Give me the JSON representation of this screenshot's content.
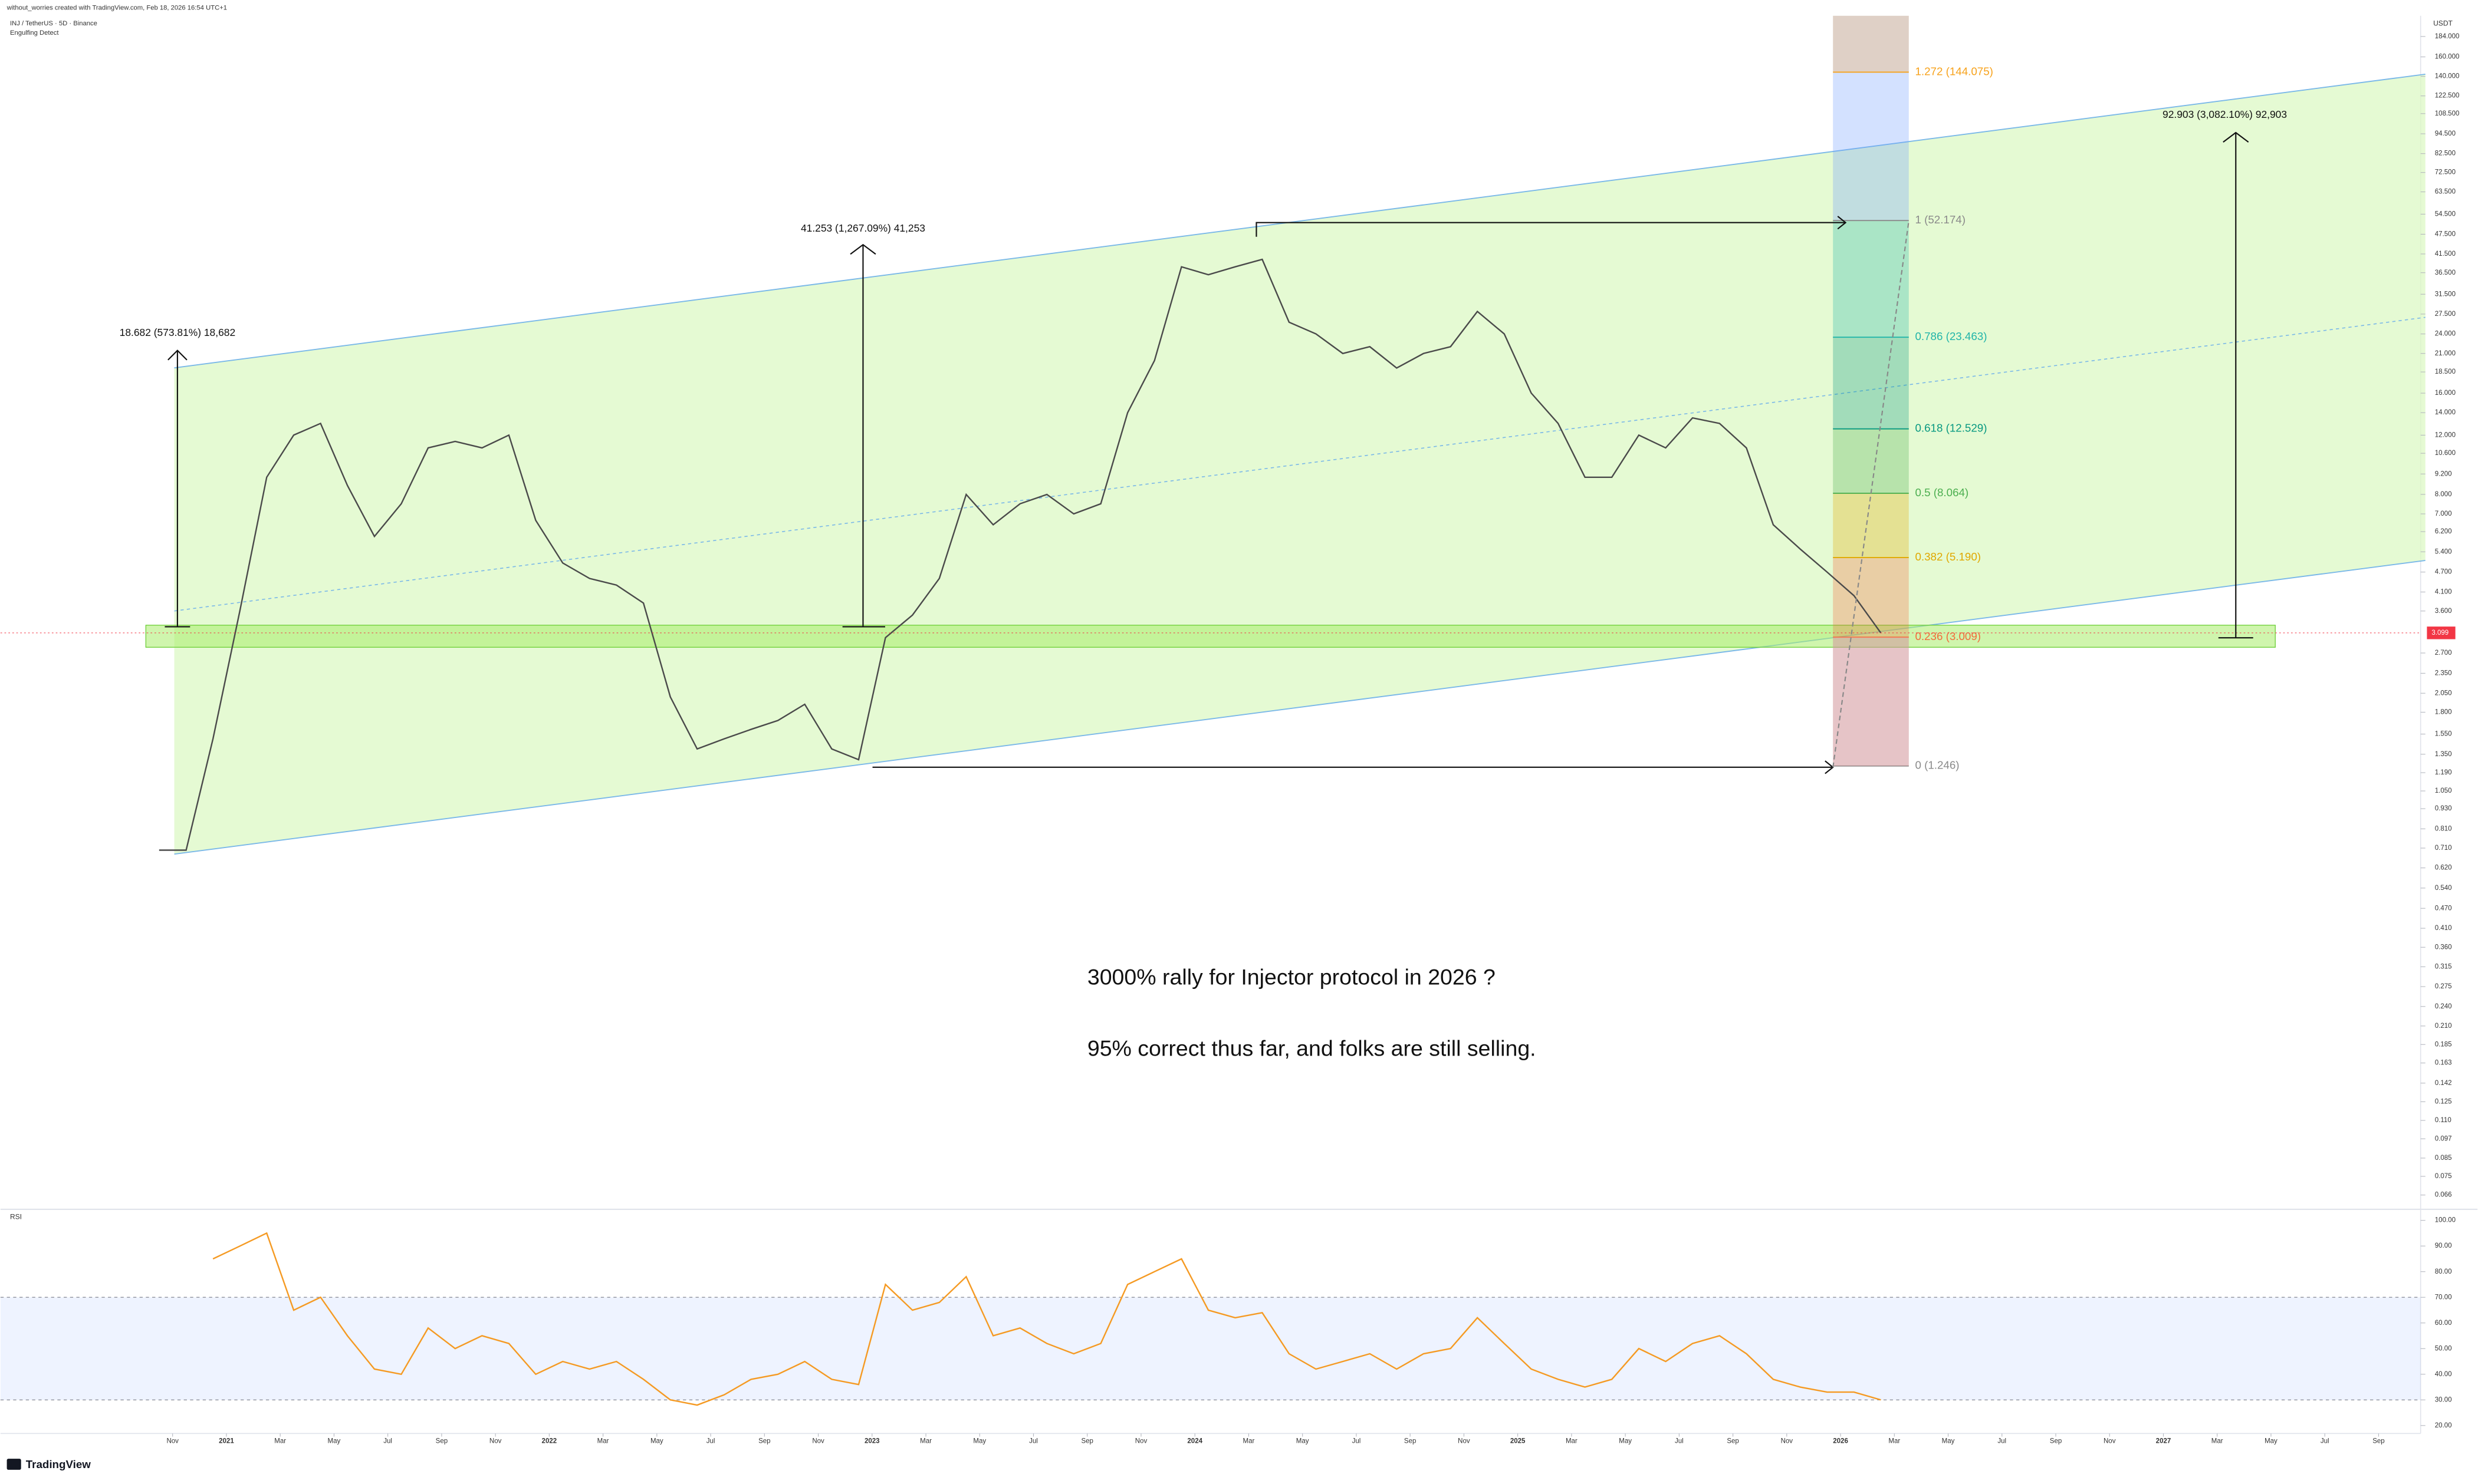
{
  "header": {
    "credit": "without_worries created with TradingView.com, Feb 18, 2026 16:54 UTC+1",
    "symbol": "INJ / TetherUS · 5D · Binance",
    "indicator": "Engulfing Detect",
    "logo": "TradingView"
  },
  "chart_data": [
    {
      "type": "line",
      "log_scale": true,
      "axis_unit": "USDT",
      "color": "#4a4a4a",
      "grid": false,
      "x": [
        "2020-10",
        "2020-11",
        "2020-12",
        "2021-01",
        "2021-02",
        "2021-03",
        "2021-04",
        "2021-05",
        "2021-06",
        "2021-07",
        "2021-08",
        "2021-09",
        "2021-10",
        "2021-11",
        "2021-12",
        "2022-01",
        "2022-02",
        "2022-03",
        "2022-04",
        "2022-05",
        "2022-06",
        "2022-07",
        "2022-08",
        "2022-09",
        "2022-10",
        "2022-11",
        "2022-12",
        "2023-01",
        "2023-02",
        "2023-03",
        "2023-04",
        "2023-05",
        "2023-06",
        "2023-07",
        "2023-08",
        "2023-09",
        "2023-10",
        "2023-11",
        "2023-12",
        "2024-01",
        "2024-02",
        "2024-03",
        "2024-04",
        "2024-05",
        "2024-06",
        "2024-07",
        "2024-08",
        "2024-09",
        "2024-10",
        "2024-11",
        "2024-12",
        "2025-01",
        "2025-02",
        "2025-03",
        "2025-04",
        "2025-05",
        "2025-06",
        "2025-07",
        "2025-08",
        "2025-09",
        "2025-10",
        "2025-11",
        "2025-12",
        "2026-01",
        "2026-02"
      ],
      "values": [
        0.7,
        0.7,
        1.5,
        3.6,
        9.0,
        12.0,
        13.0,
        8.5,
        6.0,
        7.5,
        11.0,
        11.5,
        11.0,
        12.0,
        6.7,
        5.0,
        4.5,
        4.3,
        3.8,
        2.0,
        1.4,
        1.5,
        1.6,
        1.7,
        1.9,
        1.4,
        1.3,
        3.0,
        3.5,
        4.5,
        8.0,
        6.5,
        7.5,
        8.0,
        7.0,
        7.5,
        14.0,
        20.0,
        38.0,
        36.0,
        38.0,
        40.0,
        26.0,
        24.0,
        21.0,
        22.0,
        19.0,
        21.0,
        22.0,
        28.0,
        24.0,
        16.0,
        13.0,
        9.0,
        9.0,
        12.0,
        11.0,
        13.5,
        13.0,
        11.0,
        6.5,
        5.5,
        4.7,
        4.0,
        3.1
      ],
      "ylim": [
        0.0605,
        212
      ],
      "yticks": [
        {
          "value": 184,
          "label": "184.000"
        },
        {
          "value": 160,
          "label": "160.000"
        },
        {
          "value": 140,
          "label": "140.000"
        },
        {
          "value": 122.5,
          "label": "122.500"
        },
        {
          "value": 108.5,
          "label": "108.500"
        },
        {
          "value": 94.5,
          "label": "94.500"
        },
        {
          "value": 82.5,
          "label": "82.500"
        },
        {
          "value": 72.5,
          "label": "72.500"
        },
        {
          "value": 63.5,
          "label": "63.500"
        },
        {
          "value": 54.5,
          "label": "54.500"
        },
        {
          "value": 47.5,
          "label": "47.500"
        },
        {
          "value": 41.5,
          "label": "41.500"
        },
        {
          "value": 36.5,
          "label": "36.500"
        },
        {
          "value": 31.5,
          "label": "31.500"
        },
        {
          "value": 27.5,
          "label": "27.500"
        },
        {
          "value": 24,
          "label": "24.000"
        },
        {
          "value": 21,
          "label": "21.000"
        },
        {
          "value": 18.5,
          "label": "18.500"
        },
        {
          "value": 16,
          "label": "16.000"
        },
        {
          "value": 14,
          "label": "14.000"
        },
        {
          "value": 12,
          "label": "12.000"
        },
        {
          "value": 10.6,
          "label": "10.600"
        },
        {
          "value": 9.2,
          "label": "9.200"
        },
        {
          "value": 8,
          "label": "8.000"
        },
        {
          "value": 7,
          "label": "7.000"
        },
        {
          "value": 6.2,
          "label": "6.200"
        },
        {
          "value": 5.4,
          "label": "5.400"
        },
        {
          "value": 4.7,
          "label": "4.700"
        },
        {
          "value": 4.1,
          "label": "4.100"
        },
        {
          "value": 3.6,
          "label": "3.600"
        },
        {
          "value": 2.7,
          "label": "2.700"
        },
        {
          "value": 2.35,
          "label": "2.350"
        },
        {
          "value": 2.05,
          "label": "2.050"
        },
        {
          "value": 1.8,
          "label": "1.800"
        },
        {
          "value": 1.55,
          "label": "1.550"
        },
        {
          "value": 1.35,
          "label": "1.350"
        },
        {
          "value": 1.19,
          "label": "1.190"
        },
        {
          "value": 1.05,
          "label": "1.050"
        },
        {
          "value": 0.93,
          "label": "0.930"
        },
        {
          "value": 0.81,
          "label": "0.810"
        },
        {
          "value": 0.71,
          "label": "0.710"
        },
        {
          "value": 0.62,
          "label": "0.620"
        },
        {
          "value": 0.54,
          "label": "0.540"
        },
        {
          "value": 0.47,
          "label": "0.470"
        },
        {
          "value": 0.41,
          "label": "0.410"
        },
        {
          "value": 0.36,
          "label": "0.360"
        },
        {
          "value": 0.315,
          "label": "0.315"
        },
        {
          "value": 0.275,
          "label": "0.275"
        },
        {
          "value": 0.24,
          "label": "0.240"
        },
        {
          "value": 0.21,
          "label": "0.210"
        },
        {
          "value": 0.185,
          "label": "0.185"
        },
        {
          "value": 0.163,
          "label": "0.163"
        },
        {
          "value": 0.142,
          "label": "0.142"
        },
        {
          "value": 0.125,
          "label": "0.125"
        },
        {
          "value": 0.11,
          "label": "0.110"
        },
        {
          "value": 0.097,
          "label": "0.097"
        },
        {
          "value": 0.085,
          "label": "0.085"
        },
        {
          "value": 0.075,
          "label": "0.075"
        },
        {
          "value": 0.066,
          "label": "0.066"
        }
      ],
      "xticks": [
        {
          "value": "2020-11",
          "label": "Nov"
        },
        {
          "value": "2021-01",
          "label": "2021"
        },
        {
          "value": "2021-03",
          "label": "Mar"
        },
        {
          "value": "2021-05",
          "label": "May"
        },
        {
          "value": "2021-07",
          "label": "Jul"
        },
        {
          "value": "2021-09",
          "label": "Sep"
        },
        {
          "value": "2021-11",
          "label": "Nov"
        },
        {
          "value": "2022-01",
          "label": "2022"
        },
        {
          "value": "2022-03",
          "label": "Mar"
        },
        {
          "value": "2022-05",
          "label": "May"
        },
        {
          "value": "2022-07",
          "label": "Jul"
        },
        {
          "value": "2022-09",
          "label": "Sep"
        },
        {
          "value": "2022-11",
          "label": "Nov"
        },
        {
          "value": "2023-01",
          "label": "2023"
        },
        {
          "value": "2023-03",
          "label": "Mar"
        },
        {
          "value": "2023-05",
          "label": "May"
        },
        {
          "value": "2023-07",
          "label": "Jul"
        },
        {
          "value": "2023-09",
          "label": "Sep"
        },
        {
          "value": "2023-11",
          "label": "Nov"
        },
        {
          "value": "2024-01",
          "label": "2024"
        },
        {
          "value": "2024-03",
          "label": "Mar"
        },
        {
          "value": "2024-05",
          "label": "May"
        },
        {
          "value": "2024-07",
          "label": "Jul"
        },
        {
          "value": "2024-09",
          "label": "Sep"
        },
        {
          "value": "2024-11",
          "label": "Nov"
        },
        {
          "value": "2025-01",
          "label": "2025"
        },
        {
          "value": "2025-03",
          "label": "Mar"
        },
        {
          "value": "2025-05",
          "label": "May"
        },
        {
          "value": "2025-07",
          "label": "Jul"
        },
        {
          "value": "2025-09",
          "label": "Sep"
        },
        {
          "value": "2025-11",
          "label": "Nov"
        },
        {
          "value": "2026-01",
          "label": "2026"
        },
        {
          "value": "2026-03",
          "label": "Mar"
        },
        {
          "value": "2026-05",
          "label": "May"
        },
        {
          "value": "2026-07",
          "label": "Jul"
        },
        {
          "value": "2026-09",
          "label": "Sep"
        },
        {
          "value": "2026-11",
          "label": "Nov"
        },
        {
          "value": "2027-01",
          "label": "2027"
        },
        {
          "value": "2027-03",
          "label": "Mar"
        },
        {
          "value": "2027-05",
          "label": "May"
        },
        {
          "value": "2027-07",
          "label": "Jul"
        },
        {
          "value": "2027-09",
          "label": "Sep"
        }
      ],
      "current_price": {
        "value": 3.099,
        "label": "3.099"
      },
      "fib_levels": [
        {
          "label": "1.272 (144.075)",
          "price": 144.075,
          "color": "#f7a21b"
        },
        {
          "label": "1 (52.174)",
          "price": 52.174,
          "color": "#8a8a8a"
        },
        {
          "label": "0.786 (23.463)",
          "price": 23.463,
          "color": "#22b5a9"
        },
        {
          "label": "0.618 (12.529)",
          "price": 12.529,
          "color": "#089981"
        },
        {
          "label": "0.5 (8.064)",
          "price": 8.064,
          "color": "#4caf50"
        },
        {
          "label": "0.382 (5.190)",
          "price": 5.19,
          "color": "#e0a800"
        },
        {
          "label": "0.236 (3.009)",
          "price": 3.009,
          "color": "#f26b3a"
        },
        {
          "label": "0 (1.246)",
          "price": 1.246,
          "color": "#8a8a8a"
        }
      ],
      "measurements": [
        "18.682 (573.81%) 18,682",
        "41.253 (1,267.09%) 41,253",
        "92.903 (3,082.10%) 92,903"
      ],
      "annotations": [
        "3000% rally for Injector protocol in 2026 ?",
        "95% correct thus far, and folks are still selling."
      ]
    },
    {
      "type": "line",
      "title": "RSI",
      "color": "#f59a23",
      "x": [
        "2020-12",
        "2021-01",
        "2021-02",
        "2021-03",
        "2021-04",
        "2021-05",
        "2021-06",
        "2021-07",
        "2021-08",
        "2021-09",
        "2021-10",
        "2021-11",
        "2021-12",
        "2022-01",
        "2022-02",
        "2022-03",
        "2022-04",
        "2022-05",
        "2022-06",
        "2022-07",
        "2022-08",
        "2022-09",
        "2022-10",
        "2022-11",
        "2022-12",
        "2023-01",
        "2023-02",
        "2023-03",
        "2023-04",
        "2023-05",
        "2023-06",
        "2023-07",
        "2023-08",
        "2023-09",
        "2023-10",
        "2023-11",
        "2023-12",
        "2024-01",
        "2024-02",
        "2024-03",
        "2024-04",
        "2024-05",
        "2024-06",
        "2024-07",
        "2024-08",
        "2024-09",
        "2024-10",
        "2024-11",
        "2024-12",
        "2025-01",
        "2025-02",
        "2025-03",
        "2025-04",
        "2025-05",
        "2025-06",
        "2025-07",
        "2025-08",
        "2025-09",
        "2025-10",
        "2025-11",
        "2025-12",
        "2026-01",
        "2026-02"
      ],
      "values": [
        85,
        90,
        95,
        65,
        70,
        55,
        42,
        40,
        58,
        50,
        55,
        52,
        40,
        45,
        42,
        45,
        38,
        30,
        28,
        32,
        38,
        40,
        45,
        38,
        36,
        75,
        65,
        68,
        78,
        55,
        58,
        52,
        48,
        52,
        75,
        80,
        85,
        65,
        62,
        64,
        48,
        42,
        45,
        48,
        42,
        48,
        50,
        62,
        52,
        42,
        38,
        35,
        38,
        50,
        45,
        52,
        55,
        48,
        38,
        35,
        33,
        33,
        30
      ],
      "ylim": [
        16.9,
        103.7
      ],
      "yticks": [
        {
          "value": 100,
          "label": "100.00"
        },
        {
          "value": 90,
          "label": "90.00"
        },
        {
          "value": 80,
          "label": "80.00"
        },
        {
          "value": 70,
          "label": "70.00"
        },
        {
          "value": 60,
          "label": "60.00"
        },
        {
          "value": 50,
          "label": "50.00"
        },
        {
          "value": 40,
          "label": "40.00"
        },
        {
          "value": 30,
          "label": "30.00"
        },
        {
          "value": 20,
          "label": "20.00"
        }
      ],
      "band": [
        30,
        70
      ]
    }
  ]
}
